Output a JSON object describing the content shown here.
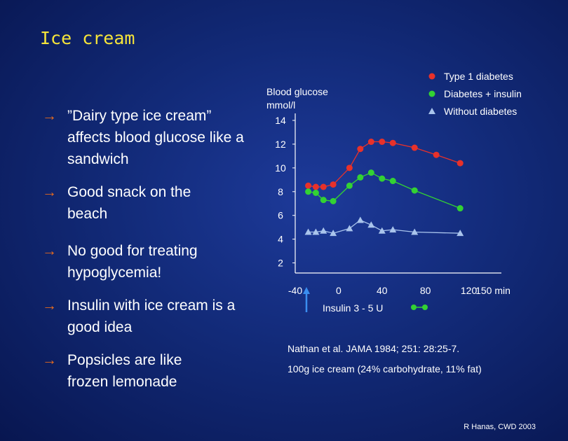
{
  "slide": {
    "title": "Ice cream",
    "credit": "R Hanas, CWD 2003"
  },
  "bullets": [
    {
      "arrow": "→",
      "text": "”Dairy type ice cream” affects blood glucose like a sandwich"
    },
    {
      "arrow": "→",
      "text": "Good  snack on the beach"
    },
    {
      "arrow": "→",
      "text": "No good for treating hypoglycemia!"
    },
    {
      "arrow": "→",
      "text": "Insulin with ice cream is a good idea"
    },
    {
      "arrow": "→",
      "text": "Popsicles are like frozen lemonade"
    }
  ],
  "references": {
    "source": "Nathan et al. JAMA 1984; 251: 28:25-7.",
    "note": "100g ice cream (24% carbohydrate, 11% fat)"
  },
  "chart_data": {
    "type": "line",
    "ylabel": "Blood glucose\nmmol/l",
    "xlabel_unit": "min",
    "xlim": [
      -40,
      150
    ],
    "ylim": [
      2,
      14
    ],
    "x_ticks": [
      -40,
      0,
      40,
      80,
      120,
      150
    ],
    "x_tick_labels": [
      "-40",
      "0",
      "40",
      "80",
      "120",
      "150 min"
    ],
    "y_ticks": [
      2,
      4,
      6,
      8,
      10,
      12,
      14
    ],
    "y_tick_labels": [
      "2",
      "4",
      "6",
      "8",
      "10",
      "12",
      "14"
    ],
    "annotation": {
      "label": "Insulin 3 - 5 U",
      "x": -5
    },
    "series": [
      {
        "name": "Type 1 diabetes",
        "marker": "circle",
        "color": "#e8312a",
        "x": [
          -28,
          -21,
          -14,
          -5,
          10,
          20,
          30,
          40,
          50,
          70,
          90,
          112
        ],
        "y": [
          8.5,
          8.4,
          8.4,
          8.6,
          10.0,
          11.6,
          12.2,
          12.2,
          12.1,
          11.7,
          11.1,
          10.4
        ]
      },
      {
        "name": "Diabetes + insulin",
        "marker": "circle",
        "color": "#33d233",
        "x": [
          -28,
          -21,
          -14,
          -5,
          10,
          20,
          30,
          40,
          50,
          70,
          112
        ],
        "y": [
          8.0,
          7.9,
          7.3,
          7.2,
          8.5,
          9.2,
          9.6,
          9.1,
          8.9,
          8.1,
          6.6
        ]
      },
      {
        "name": "Without diabetes",
        "marker": "triangle",
        "color": "#a9c4ec",
        "x": [
          -28,
          -21,
          -14,
          -5,
          10,
          20,
          30,
          40,
          50,
          70,
          112
        ],
        "y": [
          4.6,
          4.6,
          4.7,
          4.5,
          4.9,
          5.6,
          5.2,
          4.7,
          4.8,
          4.6,
          4.5
        ]
      }
    ],
    "insulin_markers": {
      "color": "#33d233",
      "x_from": 5,
      "x_to": 19
    },
    "legend": "top-right"
  }
}
